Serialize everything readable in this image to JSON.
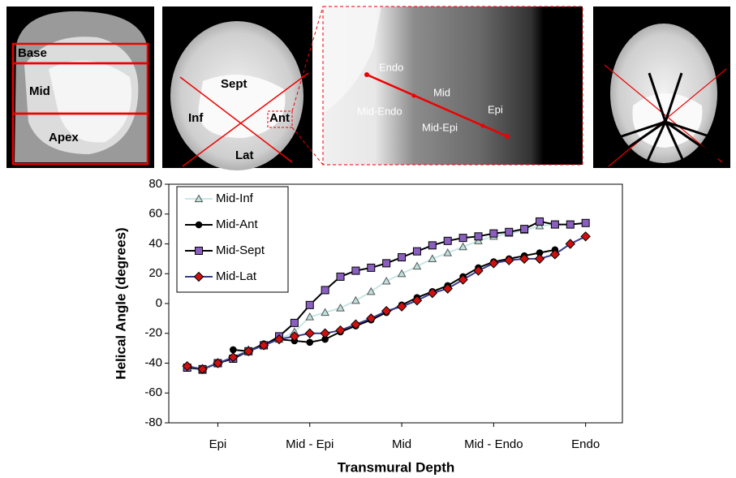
{
  "panels": {
    "long_axis": {
      "labels": [
        "Base",
        "Mid",
        "Apex"
      ]
    },
    "short_axis": {
      "labels": [
        "Sept",
        "Inf",
        "Ant",
        "Lat"
      ]
    },
    "zoom": {
      "labels": [
        "Endo",
        "Mid",
        "Epi",
        "Mid-Endo",
        "Mid-Epi"
      ]
    }
  },
  "chart_data": {
    "type": "line",
    "y_label": "Helical Angle (degrees)",
    "x_label": "Transmural Depth",
    "x": [
      0,
      1,
      2,
      3,
      4,
      5,
      6,
      7,
      8,
      9,
      10,
      11,
      12,
      13,
      14,
      15,
      16,
      17,
      18,
      19,
      20,
      21,
      22,
      23,
      24,
      25,
      26
    ],
    "xlim": [
      -1.2,
      28.4
    ],
    "xticks": [
      {
        "value": 2,
        "label": "Epi"
      },
      {
        "value": 8,
        "label": "Mid - Epi"
      },
      {
        "value": 14,
        "label": "Mid"
      },
      {
        "value": 20,
        "label": "Mid - Endo"
      },
      {
        "value": 26,
        "label": "Endo"
      }
    ],
    "ylim": [
      -80,
      80
    ],
    "yticks": [
      -80,
      -60,
      -40,
      -20,
      0,
      20,
      40,
      60,
      80
    ],
    "legend": "top-left",
    "series": [
      {
        "name": "Mid-Inf",
        "color": "#c9e6e6",
        "marker": "triangle",
        "marker_color": "#bfe3df",
        "values": [
          -43,
          -45,
          -40,
          -36,
          -31,
          -28,
          -24,
          -19,
          -9,
          -6,
          -3,
          2,
          8,
          15,
          20,
          25,
          30,
          34,
          38,
          42,
          45,
          47,
          49,
          52,
          53,
          null,
          null
        ]
      },
      {
        "name": "Mid-Ant",
        "color": "#000000",
        "marker": "circle",
        "marker_color": "#000000",
        "values": [
          null,
          null,
          null,
          -31,
          -32,
          -27,
          -24,
          -25,
          -26,
          -24,
          -19,
          -15,
          -11,
          -6,
          -1,
          4,
          8,
          12,
          18,
          24,
          28,
          30,
          32,
          34,
          36,
          null,
          null
        ]
      },
      {
        "name": "Mid-Sept",
        "color": "#000000",
        "marker": "square",
        "marker_color": "#8a5fbf",
        "values": [
          -43,
          -44,
          -40,
          -37,
          -32,
          -28,
          -22,
          -13,
          -1,
          9,
          18,
          22,
          24,
          27,
          31,
          35,
          39,
          42,
          44,
          45,
          47,
          48,
          50,
          55,
          53,
          53,
          54
        ]
      },
      {
        "name": "Mid-Lat",
        "color": "#3a3a8c",
        "marker": "diamond",
        "marker_color": "#d01010",
        "values": [
          -42,
          -44,
          -40,
          -36,
          -32,
          -28,
          -24,
          -22,
          -20,
          -20,
          -18,
          -14,
          -10,
          -5,
          -2,
          2,
          7,
          10,
          16,
          22,
          27,
          29,
          30,
          30,
          33,
          40,
          45
        ]
      }
    ]
  }
}
